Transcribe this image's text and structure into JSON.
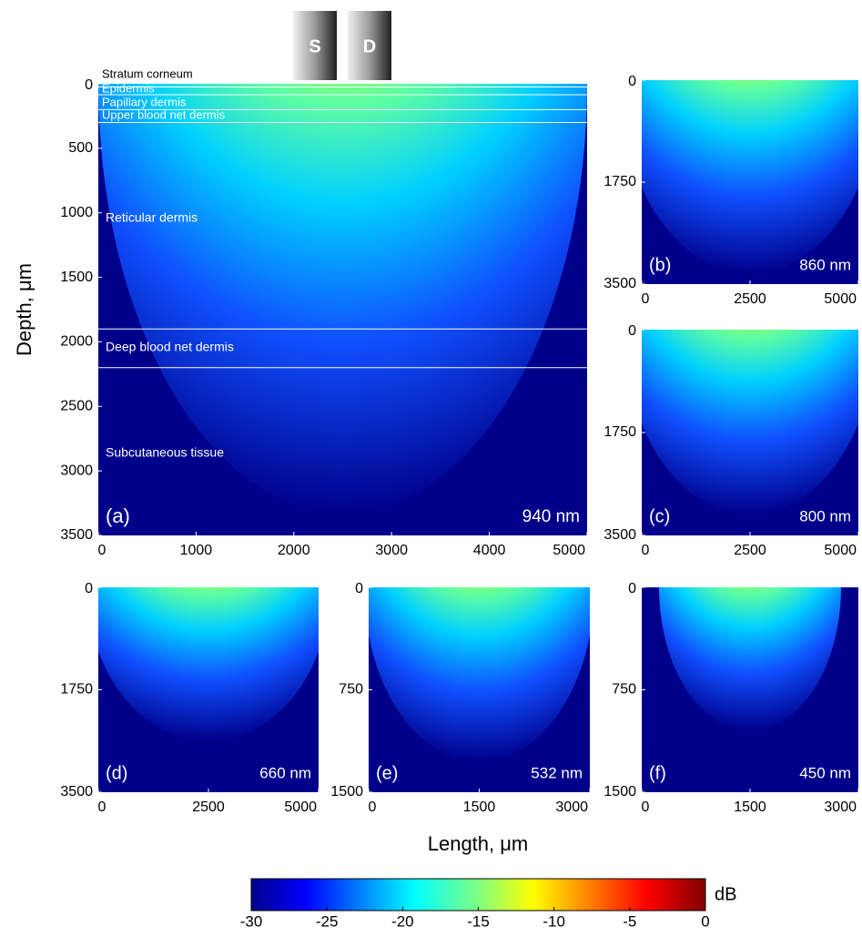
{
  "chart_data": [
    {
      "type": "heatmap",
      "panel_label": "(a)",
      "wavelength_label": "940 nm",
      "probe_labels": [
        "S",
        "D"
      ],
      "xlim": [
        0,
        5000
      ],
      "xticks": [
        0,
        1000,
        2000,
        3000,
        4000,
        5000
      ],
      "ylim": [
        0,
        3500
      ],
      "yticks": [
        0,
        500,
        1000,
        1500,
        2000,
        2500,
        3000,
        3500
      ],
      "layers": [
        {
          "name": "Stratum corneum",
          "bottom": 25
        },
        {
          "name": "Epidermis",
          "bottom": 85
        },
        {
          "name": "Papillary dermis",
          "bottom": 200
        },
        {
          "name": "Upper blood net dermis",
          "bottom": 300
        },
        {
          "name": "Reticular dermis",
          "bottom": 1900
        },
        {
          "name": "Deep blood net dermis",
          "bottom": 2200
        },
        {
          "name": "Subcutaneous tissue"
        }
      ]
    },
    {
      "type": "heatmap",
      "panel_label": "(b)",
      "wavelength_label": "860 nm",
      "xlim": [
        0,
        5000
      ],
      "xticks": [
        0,
        2500,
        5000
      ],
      "ylim": [
        0,
        3500
      ],
      "yticks": [
        0,
        1750,
        3500
      ]
    },
    {
      "type": "heatmap",
      "panel_label": "(c)",
      "wavelength_label": "800 nm",
      "xlim": [
        0,
        5000
      ],
      "xticks": [
        0,
        2500,
        5000
      ],
      "ylim": [
        0,
        3500
      ],
      "yticks": [
        0,
        1750,
        3500
      ]
    },
    {
      "type": "heatmap",
      "panel_label": "(d)",
      "wavelength_label": "660 nm",
      "xlim": [
        0,
        5000
      ],
      "xticks": [
        0,
        2500,
        5000
      ],
      "ylim": [
        0,
        3500
      ],
      "yticks": [
        0,
        1750,
        3500
      ]
    },
    {
      "type": "heatmap",
      "panel_label": "(e)",
      "wavelength_label": "532 nm",
      "xlim": [
        0,
        3000
      ],
      "xticks": [
        0,
        1500,
        3000
      ],
      "ylim": [
        0,
        1500
      ],
      "yticks": [
        0,
        750,
        1500
      ]
    },
    {
      "type": "heatmap",
      "panel_label": "(f)",
      "wavelength_label": "450 nm",
      "xlim": [
        0,
        3000
      ],
      "xticks": [
        0,
        1500,
        3000
      ],
      "ylim": [
        0,
        1500
      ],
      "yticks": [
        0,
        750,
        1500
      ]
    },
    {
      "type": "colorbar",
      "unit": "dB",
      "xlim": [
        -30,
        0
      ],
      "xticks": [
        -30,
        -25,
        -20,
        -15,
        -10,
        -5,
        0
      ],
      "x_label": "Length, μm",
      "y_label": "Depth, μm"
    }
  ]
}
